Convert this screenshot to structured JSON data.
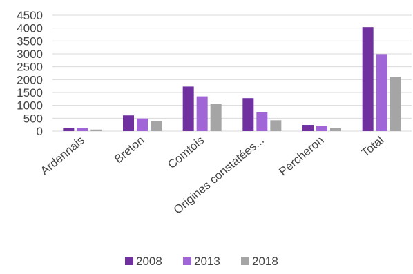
{
  "chart_data": {
    "type": "bar",
    "categories": [
      "Ardennais",
      "Breton",
      "Comtois",
      "Origines constatées...",
      "Percheron",
      "Total"
    ],
    "series": [
      {
        "name": "2008",
        "color": "#7030a0",
        "values": [
          130,
          610,
          1730,
          1280,
          240,
          4040
        ]
      },
      {
        "name": "2013",
        "color": "#a066d8",
        "values": [
          110,
          490,
          1350,
          730,
          210,
          2990
        ]
      },
      {
        "name": "2018",
        "color": "#a5a5a5",
        "values": [
          60,
          380,
          1050,
          420,
          120,
          2100
        ]
      }
    ],
    "ylim": [
      0,
      4500
    ],
    "yticks": [
      0,
      500,
      1000,
      1500,
      2000,
      2500,
      3000,
      3500,
      4000,
      4500
    ],
    "title": "",
    "xlabel": "",
    "ylabel": "",
    "grid": true,
    "legend_position": "bottom"
  }
}
